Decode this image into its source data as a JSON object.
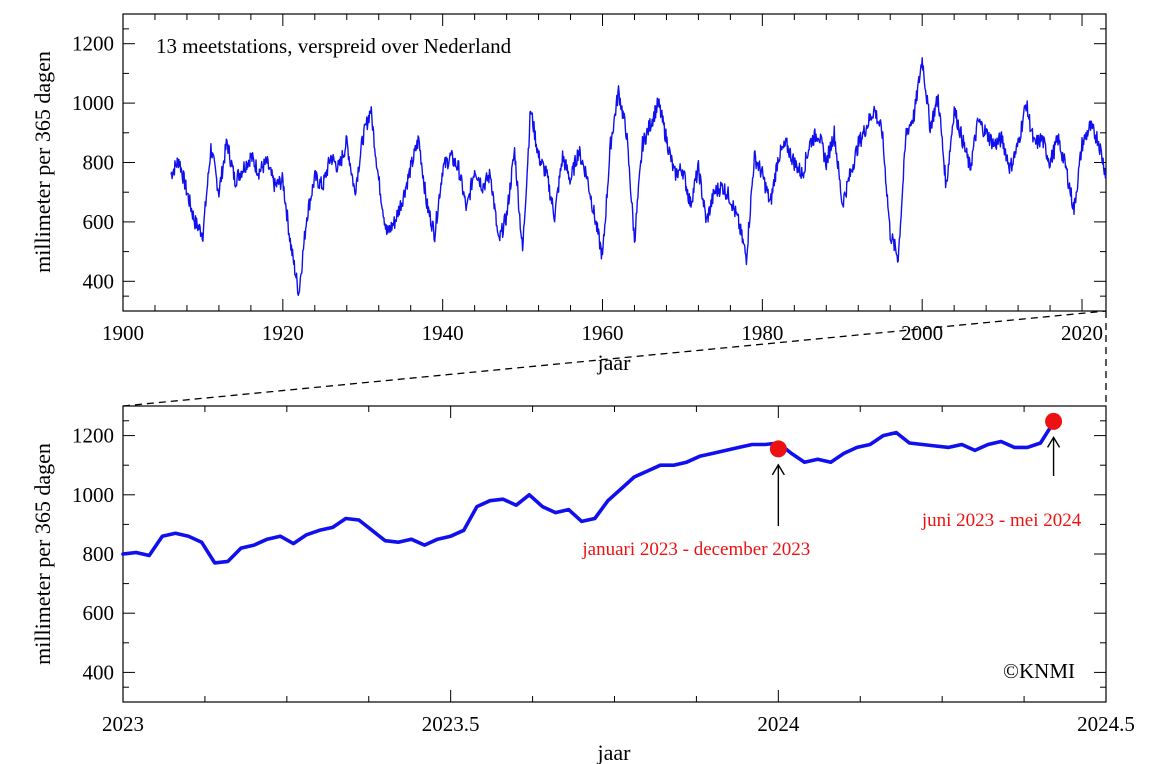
{
  "chart_data": [
    {
      "type": "line",
      "title": "",
      "note": "13 meetstations, verspreid over Nederland",
      "xlabel": "jaar",
      "ylabel": "millimeter per 365 dagen",
      "xlim": [
        1900,
        2023
      ],
      "ylim": [
        300,
        1300
      ],
      "grid": false,
      "xticks": [
        1900,
        1920,
        1940,
        1960,
        1980,
        2000,
        2020
      ],
      "xtick_labels": [
        "1900",
        "1920",
        "1940",
        "1960",
        "1980",
        "2000",
        "2020"
      ],
      "yticks": [
        400,
        600,
        800,
        1000,
        1200
      ],
      "ytick_labels": [
        "400",
        "600",
        "800",
        "1000",
        "1200"
      ],
      "line_color": "#1010ee",
      "series": [
        {
          "x": [
            1906,
            1907,
            1908,
            1909,
            1910,
            1911,
            1912,
            1913,
            1914,
            1915,
            1916,
            1917,
            1918,
            1919,
            1920,
            1921,
            1922,
            1923,
            1924,
            1925,
            1926,
            1927,
            1928,
            1929,
            1930,
            1931,
            1932,
            1933,
            1934,
            1935,
            1936,
            1937,
            1938,
            1939,
            1940,
            1941,
            1942,
            1943,
            1944,
            1945,
            1946,
            1947,
            1948,
            1949,
            1950,
            1951,
            1952,
            1953,
            1954,
            1955,
            1956,
            1957,
            1958,
            1959,
            1960,
            1961,
            1962,
            1963,
            1964,
            1965,
            1966,
            1967,
            1968,
            1969,
            1970,
            1971,
            1972,
            1973,
            1974,
            1975,
            1976,
            1977,
            1978,
            1979,
            1980,
            1981,
            1982,
            1983,
            1984,
            1985,
            1986,
            1987,
            1988,
            1989,
            1990,
            1991,
            1992,
            1993,
            1994,
            1995,
            1996,
            1997,
            1998,
            1999,
            2000,
            2001,
            2002,
            2003,
            2004,
            2005,
            2006,
            2007,
            2008,
            2009,
            2010,
            2011,
            2012,
            2013,
            2014,
            2015,
            2016,
            2017,
            2018,
            2019,
            2020,
            2021,
            2022,
            2023
          ],
          "values": [
            760,
            810,
            700,
            600,
            560,
            850,
            700,
            870,
            740,
            780,
            820,
            770,
            800,
            720,
            740,
            520,
            360,
            620,
            750,
            720,
            820,
            780,
            870,
            700,
            880,
            980,
            740,
            560,
            600,
            680,
            780,
            880,
            660,
            560,
            780,
            820,
            780,
            640,
            780,
            720,
            760,
            530,
            620,
            840,
            500,
            980,
            820,
            760,
            620,
            820,
            740,
            840,
            760,
            620,
            480,
            860,
            1040,
            900,
            540,
            860,
            930,
            1000,
            880,
            760,
            780,
            660,
            780,
            600,
            700,
            720,
            680,
            600,
            480,
            820,
            760,
            660,
            820,
            860,
            800,
            760,
            870,
            900,
            800,
            900,
            660,
            760,
            860,
            920,
            980,
            900,
            560,
            480,
            900,
            960,
            1150,
            920,
            1020,
            720,
            980,
            880,
            780,
            940,
            900,
            860,
            880,
            780,
            860,
            1000,
            860,
            880,
            800,
            880,
            780,
            640,
            860,
            920,
            880,
            760
          ]
        }
      ]
    },
    {
      "type": "line",
      "title": "",
      "xlabel": "jaar",
      "ylabel": "millimeter per 365 dagen",
      "xlim": [
        2023,
        2024.5
      ],
      "ylim": [
        300,
        1300
      ],
      "grid": false,
      "xticks": [
        2023,
        2023.5,
        2024,
        2024.5
      ],
      "xtick_labels": [
        "2023",
        "2023.5",
        "2024",
        "2024.5"
      ],
      "yticks": [
        400,
        600,
        800,
        1000,
        1200
      ],
      "ytick_labels": [
        "400",
        "600",
        "800",
        "1000",
        "1200"
      ],
      "line_color": "#1010ee",
      "series": [
        {
          "x": [
            2023.0,
            2023.02,
            2023.04,
            2023.06,
            2023.08,
            2023.1,
            2023.12,
            2023.14,
            2023.16,
            2023.18,
            2023.2,
            2023.22,
            2023.24,
            2023.26,
            2023.28,
            2023.3,
            2023.32,
            2023.34,
            2023.36,
            2023.38,
            2023.4,
            2023.42,
            2023.44,
            2023.46,
            2023.48,
            2023.5,
            2023.52,
            2023.54,
            2023.56,
            2023.58,
            2023.6,
            2023.62,
            2023.64,
            2023.66,
            2023.68,
            2023.7,
            2023.72,
            2023.74,
            2023.76,
            2023.78,
            2023.8,
            2023.82,
            2023.84,
            2023.86,
            2023.88,
            2023.9,
            2023.92,
            2023.94,
            2023.96,
            2023.98,
            2024.0,
            2024.02,
            2024.04,
            2024.06,
            2024.08,
            2024.1,
            2024.12,
            2024.14,
            2024.16,
            2024.18,
            2024.2,
            2024.22,
            2024.24,
            2024.26,
            2024.28,
            2024.3,
            2024.32,
            2024.34,
            2024.36,
            2024.38,
            2024.4,
            2024.42
          ],
          "values": [
            800,
            805,
            795,
            860,
            870,
            860,
            840,
            770,
            775,
            820,
            830,
            850,
            860,
            835,
            865,
            880,
            890,
            920,
            915,
            880,
            845,
            840,
            850,
            830,
            850,
            860,
            880,
            960,
            980,
            985,
            965,
            1000,
            960,
            940,
            950,
            910,
            920,
            980,
            1020,
            1060,
            1080,
            1100,
            1100,
            1110,
            1130,
            1140,
            1150,
            1160,
            1170,
            1170,
            1175,
            1140,
            1110,
            1120,
            1110,
            1140,
            1160,
            1170,
            1200,
            1210,
            1175,
            1170,
            1165,
            1160,
            1170,
            1150,
            1170,
            1180,
            1160,
            1160,
            1175,
            1245
          ]
        }
      ],
      "highlights": [
        {
          "x": 2024.0,
          "y": 1155,
          "label": "januari 2023 - december 2023"
        },
        {
          "x": 2024.42,
          "y": 1248,
          "label": "juni 2023 - mei 2024"
        }
      ],
      "highlight_color": "#ee1111",
      "annotation_color": "#ee1111",
      "copyright": "©KNMI"
    }
  ]
}
